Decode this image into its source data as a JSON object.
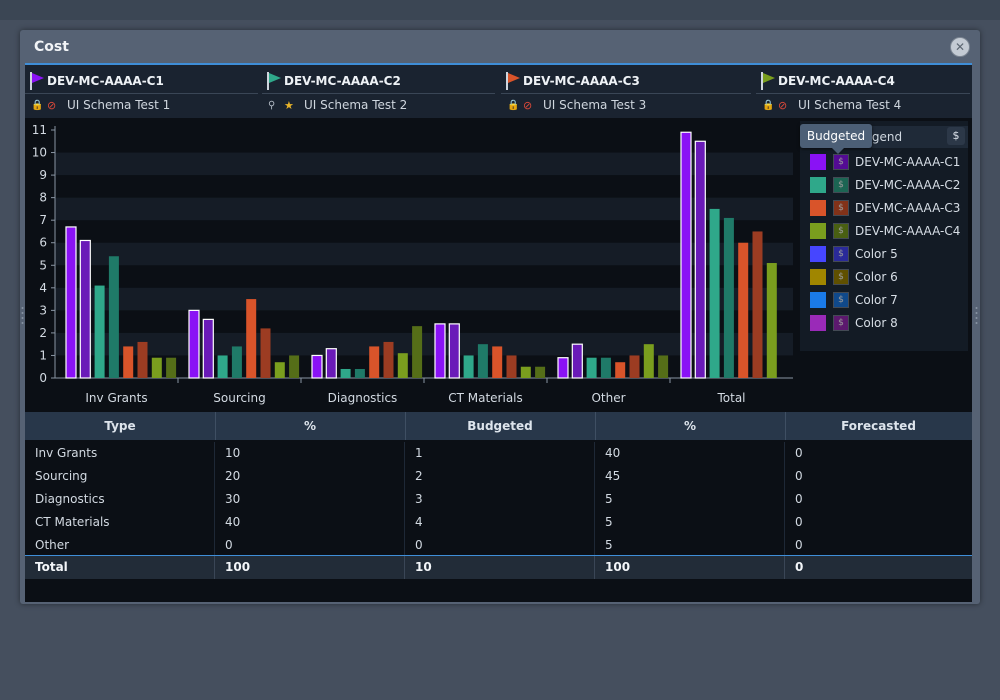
{
  "window": {
    "title": "Cost"
  },
  "comparisons": [
    {
      "name": "DEV-MC-AAAA-C1",
      "schema": "UI Schema Test 1",
      "color": "#8a12f5"
    },
    {
      "name": "DEV-MC-AAAA-C2",
      "schema": "UI Schema Test 2",
      "color": "#2fa88a"
    },
    {
      "name": "DEV-MC-AAAA-C3",
      "schema": "UI Schema Test 3",
      "color": "#d9542a"
    },
    {
      "name": "DEV-MC-AAAA-C4",
      "schema": "UI Schema Test 4",
      "color": "#7a9e1e"
    }
  ],
  "legend": {
    "title": "Legend",
    "tooltip": "Budgeted",
    "icon": "money-bag-icon",
    "items": [
      {
        "label": "DEV-MC-AAAA-C1",
        "color": "#8a12f5"
      },
      {
        "label": "DEV-MC-AAAA-C2",
        "color": "#2fa88a"
      },
      {
        "label": "DEV-MC-AAAA-C3",
        "color": "#d9542a"
      },
      {
        "label": "DEV-MC-AAAA-C4",
        "color": "#7a9e1e"
      },
      {
        "label": "Color 5",
        "color": "#4646ff"
      },
      {
        "label": "Color 6",
        "color": "#a08600"
      },
      {
        "label": "Color 7",
        "color": "#1a7ae8"
      },
      {
        "label": "Color 8",
        "color": "#9a2ab8"
      }
    ]
  },
  "chart_data": {
    "type": "bar",
    "categories": [
      "Inv Grants",
      "Sourcing",
      "Diagnostics",
      "CT Materials",
      "Other",
      "Total"
    ],
    "ylim": [
      0,
      11
    ],
    "yticks": [
      "0",
      "1",
      "2",
      "3",
      "4",
      "5",
      "6",
      "7",
      "8",
      "9",
      "10",
      "11"
    ],
    "grid": true,
    "series": [
      {
        "name": "DEV-MC-AAAA-C1",
        "color": "#8a12f5",
        "values": [
          6.7,
          3.0,
          1.0,
          2.4,
          0.9,
          10.9
        ]
      },
      {
        "name": "DEV-MC-AAAA-C1",
        "color": "#6a1ab8",
        "values": [
          6.1,
          2.6,
          1.3,
          2.4,
          1.5,
          10.5
        ]
      },
      {
        "name": "DEV-MC-AAAA-C2",
        "color": "#2fa88a",
        "values": [
          4.1,
          1.0,
          0.4,
          1.0,
          0.9,
          7.5
        ]
      },
      {
        "name": "DEV-MC-AAAA-C2",
        "color": "#1f7a68",
        "values": [
          5.4,
          1.4,
          0.4,
          1.5,
          0.9,
          7.1
        ]
      },
      {
        "name": "DEV-MC-AAAA-C3",
        "color": "#d9542a",
        "values": [
          1.4,
          3.5,
          1.4,
          1.4,
          0.7,
          6.0
        ]
      },
      {
        "name": "DEV-MC-AAAA-C3",
        "color": "#9c3c22",
        "values": [
          1.6,
          2.2,
          1.6,
          1.0,
          1.0,
          6.5
        ]
      },
      {
        "name": "DEV-MC-AAAA-C4",
        "color": "#7a9e1e",
        "values": [
          0.9,
          0.7,
          1.1,
          0.5,
          1.5,
          5.1
        ]
      },
      {
        "name": "DEV-MC-AAAA-C4",
        "color": "#556e18",
        "values": [
          0.9,
          1.0,
          2.3,
          0.5,
          1.0,
          0.0
        ]
      }
    ]
  },
  "table": {
    "headers": [
      "Type",
      "%",
      "Budgeted",
      "%",
      "Forecasted"
    ],
    "rows": [
      [
        "Inv Grants",
        "10",
        "1",
        "40",
        "0"
      ],
      [
        "Sourcing",
        "20",
        "2",
        "45",
        "0"
      ],
      [
        "Diagnostics",
        "30",
        "3",
        "5",
        "0"
      ],
      [
        "CT Materials",
        "40",
        "4",
        "5",
        "0"
      ],
      [
        "Other",
        "0",
        "0",
        "5",
        "0"
      ]
    ],
    "total": [
      "Total",
      "100",
      "10",
      "100",
      "0"
    ]
  }
}
